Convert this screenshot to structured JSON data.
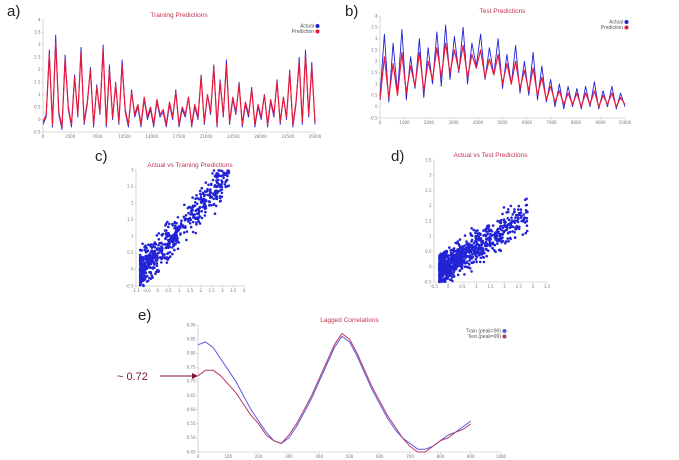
{
  "panel_labels": [
    "a)",
    "b)",
    "c)",
    "d)",
    "e)"
  ],
  "colors": {
    "actual": "#2323d6",
    "prediction": "#e8193a",
    "train": "#5b5bd9",
    "test": "#b5386b",
    "axis": "#b9b9b9",
    "annotation": "#7a1330"
  },
  "chart_data": [
    {
      "id": "a",
      "type": "line",
      "title": "Training Predictions",
      "legend": [
        "Actual",
        "Prediction"
      ],
      "legend_position": "top-right",
      "x_ticks": [
        "0",
        "3500",
        "7000",
        "10500",
        "14000",
        "17500",
        "21000",
        "24500",
        "28000",
        "31500",
        "35000"
      ],
      "y_ticks": [
        "-0.5",
        "0",
        "0.5",
        "1",
        "1.5",
        "2",
        "2.5",
        "3",
        "3.5",
        "4"
      ],
      "xlim": [
        0,
        35000
      ],
      "ylim": [
        -0.5,
        4
      ],
      "series": [
        {
          "name": "Actual",
          "values": [
            -0.2,
            0.1,
            2.8,
            -0.3,
            3.4,
            0.2,
            -0.4,
            2.6,
            0.4,
            -0.3,
            1.8,
            0.1,
            2.9,
            -0.2,
            0.6,
            2.1,
            -0.3,
            1.4,
            0.2,
            3.0,
            -0.3,
            2.2,
            0.0,
            1.5,
            -0.2,
            2.4,
            0.3,
            -0.3,
            1.2,
            0.1,
            0.5,
            -0.3,
            0.8,
            0.0,
            0.4,
            -0.3,
            0.7,
            0.1,
            0.3,
            -0.3,
            0.6,
            0.0,
            1.2,
            -0.3,
            0.4,
            0.1,
            0.9,
            -0.3,
            0.5,
            0.0,
            1.8,
            -0.2,
            1.0,
            0.2,
            2.2,
            -0.3,
            1.6,
            0.1,
            2.4,
            -0.2,
            0.8,
            0.2,
            1.5,
            -0.3,
            0.6,
            0.1,
            1.3,
            -0.3,
            0.5,
            0.0,
            1.0,
            -0.3,
            0.7,
            0.1,
            1.6,
            -0.2,
            0.9,
            0.0,
            2.0,
            -0.3,
            0.6,
            2.5,
            -0.2,
            2.8,
            0.1,
            2.3,
            -0.2
          ]
        },
        {
          "name": "Prediction",
          "values": [
            -0.1,
            0.2,
            2.6,
            -0.2,
            3.1,
            0.3,
            -0.3,
            2.4,
            0.5,
            -0.2,
            1.7,
            0.2,
            2.7,
            -0.1,
            0.7,
            2.0,
            -0.2,
            1.3,
            0.3,
            2.8,
            -0.2,
            2.0,
            0.1,
            1.4,
            -0.1,
            2.2,
            0.4,
            -0.2,
            1.1,
            0.2,
            0.6,
            -0.2,
            0.9,
            0.1,
            0.5,
            -0.2,
            0.8,
            0.2,
            0.4,
            -0.2,
            0.7,
            0.1,
            1.1,
            -0.2,
            0.5,
            0.2,
            0.9,
            -0.2,
            0.6,
            0.1,
            1.7,
            -0.1,
            1.0,
            0.3,
            2.1,
            -0.2,
            1.5,
            0.2,
            2.2,
            -0.1,
            0.9,
            0.3,
            1.4,
            -0.2,
            0.7,
            0.2,
            1.2,
            -0.2,
            0.6,
            0.1,
            1.0,
            -0.2,
            0.8,
            0.2,
            1.5,
            -0.1,
            0.9,
            0.1,
            1.9,
            -0.2,
            0.7,
            2.3,
            -0.1,
            2.6,
            0.2,
            2.1,
            -0.1
          ]
        }
      ]
    },
    {
      "id": "b",
      "type": "line",
      "title": "Test Predictions",
      "legend": [
        "Actual",
        "Prediction"
      ],
      "legend_position": "top-right",
      "x_ticks": [
        "0",
        "1000",
        "2000",
        "3000",
        "4000",
        "5000",
        "6000",
        "7000",
        "8000",
        "9000",
        "10000"
      ],
      "y_ticks": [
        "-0.5",
        "0",
        "0.5",
        "1",
        "1.5",
        "2",
        "2.5",
        "3",
        "3.5",
        "4"
      ],
      "xlim": [
        0,
        10000
      ],
      "ylim": [
        -0.5,
        4
      ],
      "series": [
        {
          "name": "Actual",
          "values": [
            0.5,
            3.2,
            0.2,
            2.8,
            0.6,
            3.4,
            0.3,
            2.2,
            0.8,
            3.0,
            0.4,
            2.6,
            1.0,
            3.3,
            0.9,
            3.6,
            1.2,
            3.1,
            1.5,
            3.5,
            1.0,
            2.8,
            1.8,
            3.2,
            1.2,
            2.6,
            1.4,
            3.0,
            0.8,
            2.3,
            1.0,
            2.7,
            0.6,
            2.0,
            0.5,
            2.4,
            0.3,
            1.8,
            0.2,
            1.2,
            0.0,
            1.0,
            -0.1,
            0.9,
            0.0,
            0.8,
            -0.1,
            0.9,
            0.0,
            1.1,
            -0.1,
            0.7,
            0.0,
            0.9,
            -0.1,
            0.6,
            0.0
          ]
        },
        {
          "name": "Prediction",
          "values": [
            0.3,
            2.2,
            0.4,
            1.9,
            0.5,
            2.4,
            0.6,
            1.8,
            0.9,
            2.4,
            0.7,
            2.0,
            1.2,
            2.6,
            1.3,
            2.8,
            1.5,
            2.5,
            1.6,
            2.7,
            1.3,
            2.3,
            1.7,
            2.5,
            1.3,
            2.1,
            1.4,
            2.3,
            1.0,
            1.9,
            1.0,
            2.0,
            0.8,
            1.6,
            0.7,
            1.7,
            0.5,
            1.3,
            0.3,
            0.9,
            0.2,
            0.7,
            0.1,
            0.6,
            0.1,
            0.6,
            0.0,
            0.6,
            0.1,
            0.7,
            0.0,
            0.5,
            0.1,
            0.6,
            0.0,
            0.4,
            0.1
          ]
        }
      ]
    },
    {
      "id": "c",
      "type": "scatter",
      "title": "Actual vs Training Predictions",
      "x_ticks": [
        "-1.1",
        "-0.6",
        "0",
        "0.5",
        "1",
        "1.5",
        "2",
        "2.5",
        "3",
        "3.5",
        "4"
      ],
      "y_ticks": [
        "-0.5",
        "0",
        "0.5",
        "1",
        "1.5",
        "2",
        "2.5",
        "3"
      ],
      "xlim": [
        -1.1,
        4
      ],
      "ylim": [
        -0.5,
        3
      ],
      "correlation_slope": 0.72,
      "point_count": 650,
      "seed": 11
    },
    {
      "id": "d",
      "type": "scatter",
      "title": "Actual vs Test Predictions",
      "x_ticks": [
        "-0.5",
        "0",
        "0.5",
        "1",
        "1.5",
        "2",
        "2.5",
        "3",
        "3.5"
      ],
      "y_ticks": [
        "-0.5",
        "0",
        "0.5",
        "1",
        "1.5",
        "2",
        "2.5",
        "3",
        "3.5"
      ],
      "xlim": [
        -0.5,
        3.6
      ],
      "ylim": [
        -0.5,
        3.6
      ],
      "correlation_slope": 0.6,
      "point_count": 900,
      "seed": 29
    },
    {
      "id": "e",
      "type": "line",
      "title": "Lagged Correlations",
      "legend": [
        "Train (peak=99)",
        "Test (peak=99)"
      ],
      "legend_position": "top-right",
      "x_ticks": [
        "0",
        "100",
        "200",
        "300",
        "400",
        "500",
        "600",
        "700",
        "800",
        "900",
        "1000"
      ],
      "y_ticks": [
        "0.45",
        "0.50",
        "0.55",
        "0.60",
        "0.65",
        "0.70",
        "0.75",
        "0.80",
        "0.85",
        "0.90"
      ],
      "xlim": [
        0,
        1000
      ],
      "ylim": [
        0.45,
        0.9
      ],
      "x": [
        0,
        25,
        50,
        75,
        100,
        125,
        150,
        175,
        200,
        225,
        250,
        275,
        300,
        325,
        350,
        375,
        400,
        425,
        450,
        475,
        500,
        525,
        550,
        575,
        600,
        625,
        650,
        675,
        700,
        725,
        750,
        775,
        800,
        825,
        850,
        875,
        900
      ],
      "series": [
        {
          "name": "Train (peak=99)",
          "values": [
            0.83,
            0.84,
            0.82,
            0.78,
            0.74,
            0.7,
            0.65,
            0.6,
            0.56,
            0.52,
            0.49,
            0.48,
            0.5,
            0.54,
            0.59,
            0.64,
            0.7,
            0.76,
            0.82,
            0.86,
            0.84,
            0.79,
            0.73,
            0.67,
            0.62,
            0.57,
            0.53,
            0.5,
            0.48,
            0.46,
            0.46,
            0.47,
            0.49,
            0.51,
            0.52,
            0.54,
            0.56
          ]
        },
        {
          "name": "Test (peak=99)",
          "values": [
            0.72,
            0.74,
            0.74,
            0.72,
            0.69,
            0.66,
            0.62,
            0.58,
            0.55,
            0.51,
            0.49,
            0.48,
            0.51,
            0.55,
            0.6,
            0.65,
            0.71,
            0.77,
            0.83,
            0.87,
            0.85,
            0.8,
            0.74,
            0.68,
            0.63,
            0.58,
            0.54,
            0.5,
            0.47,
            0.45,
            0.45,
            0.47,
            0.49,
            0.5,
            0.52,
            0.53,
            0.55
          ]
        }
      ]
    }
  ],
  "annotation": {
    "text": "~ 0.72"
  }
}
